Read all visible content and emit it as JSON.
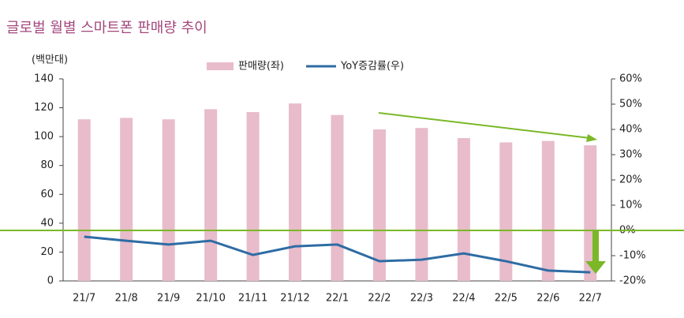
{
  "chart_data": {
    "type": "bar_line",
    "title": "글로벌 월별 스마트폰 판매량 추이",
    "y_unit": "(백만대)",
    "categories": [
      "21/7",
      "21/8",
      "21/9",
      "21/10",
      "21/11",
      "21/12",
      "22/1",
      "22/2",
      "22/3",
      "22/4",
      "22/5",
      "22/6",
      "22/7"
    ],
    "series": [
      {
        "name": "판매량(좌)",
        "color": "#e8bccb",
        "axis": "y",
        "values": [
          112,
          113,
          112,
          119,
          117,
          123,
          115,
          105,
          106,
          99,
          96,
          97,
          94
        ]
      },
      {
        "name": "YoY증감률(우)",
        "color": "#2e6ca4",
        "axis": "y2",
        "values": [
          -2.5,
          -4.1,
          -5.6,
          -4.1,
          -9.7,
          -6.3,
          -5.6,
          -12.2,
          -11.6,
          -9.1,
          -12.2,
          -15.9,
          -16.6
        ]
      }
    ],
    "ylim": [
      0,
      140
    ],
    "yticks": [
      0,
      20,
      40,
      60,
      80,
      100,
      120,
      140
    ],
    "y2lim": [
      -20,
      60
    ],
    "y2ticks": [
      {
        "value": -20,
        "label": "-20%"
      },
      {
        "value": -10,
        "label": "-10%"
      },
      {
        "value": 0,
        "label": "0%"
      },
      {
        "value": 10,
        "label": "10%"
      },
      {
        "value": 20,
        "label": "20%"
      },
      {
        "value": 30,
        "label": "30%"
      },
      {
        "value": 40,
        "label": "40%"
      },
      {
        "value": 50,
        "label": "50%"
      },
      {
        "value": 60,
        "label": "60%"
      }
    ]
  }
}
